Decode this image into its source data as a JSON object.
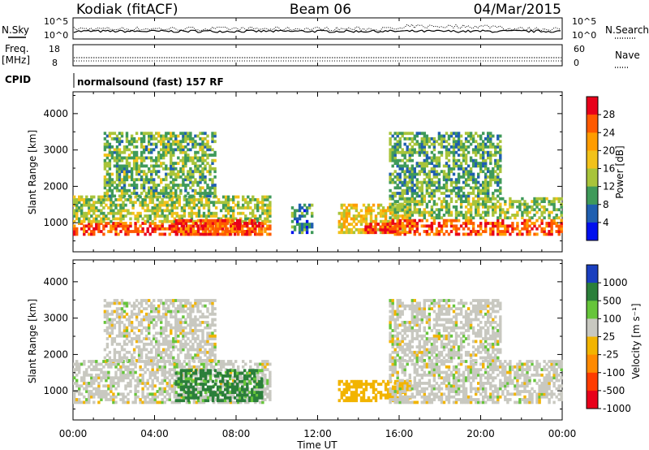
{
  "header": {
    "station": "Kodiak (fitACF)",
    "beam": "Beam 06",
    "date": "04/Mar/2015"
  },
  "status_panels": {
    "nsky_label": "N.Sky",
    "nsky_ticks": [
      "10^5",
      "10^0"
    ],
    "nsearch_label": "N.Search",
    "nsearch_ticks": [
      "10^5",
      "10^0"
    ],
    "freq_label": "Freq.",
    "freq_unit": "[MHz]",
    "freq_ticks": [
      "18",
      "8"
    ],
    "nave_label": "Nave",
    "nave_ticks": [
      "60",
      "0"
    ],
    "cpid_label": "CPID",
    "cpid_text": "normalsound (fast) 157 RF"
  },
  "chart_data": [
    {
      "type": "heatmap",
      "panel": "power",
      "ylabel": "Slant Range [km]",
      "xlabel": "Time UT",
      "x_ticks": [
        "00:00",
        "04:00",
        "08:00",
        "12:00",
        "16:00",
        "20:00",
        "00:00"
      ],
      "xlim": [
        0,
        24
      ],
      "y_ticks": [
        1000,
        2000,
        3000,
        4000
      ],
      "ylim": [
        200,
        4600
      ],
      "colorbar": {
        "label": "Power [dB]",
        "ticks": [
          "28",
          "24",
          "20",
          "16",
          "12",
          "8",
          "4"
        ],
        "colors": [
          "#e8001a",
          "#ff5a00",
          "#ff9c00",
          "#f2c21a",
          "#a8c43a",
          "#3f9a5a",
          "#1f5fb0",
          "#0010ee"
        ]
      },
      "regions": [
        {
          "t0": 0.0,
          "t1": 9.6,
          "r0": 650,
          "r1": 1000,
          "level": 26
        },
        {
          "t0": 0.0,
          "t1": 9.6,
          "r0": 1000,
          "r1": 1700,
          "level": 14
        },
        {
          "t0": 1.5,
          "t1": 7.0,
          "r0": 1700,
          "r1": 3500,
          "level": 12
        },
        {
          "t0": 5.0,
          "t1": 9.2,
          "r0": 650,
          "r1": 1100,
          "level": 27
        },
        {
          "t0": 10.7,
          "t1": 11.7,
          "r0": 700,
          "r1": 1500,
          "level": 8
        },
        {
          "t0": 13.0,
          "t1": 16.5,
          "r0": 700,
          "r1": 1500,
          "level": 18
        },
        {
          "t0": 14.3,
          "t1": 15.8,
          "r0": 700,
          "r1": 950,
          "level": 27
        },
        {
          "t0": 15.5,
          "t1": 24.0,
          "r0": 650,
          "r1": 1100,
          "level": 26
        },
        {
          "t0": 15.5,
          "t1": 24.0,
          "r0": 1100,
          "r1": 1700,
          "level": 13
        },
        {
          "t0": 15.5,
          "t1": 21.0,
          "r0": 1700,
          "r1": 3500,
          "level": 11
        }
      ]
    },
    {
      "type": "heatmap",
      "panel": "velocity",
      "ylabel": "Slant Range [km]",
      "xlabel": "Time UT",
      "x_ticks": [
        "00:00",
        "04:00",
        "08:00",
        "12:00",
        "16:00",
        "20:00",
        "00:00"
      ],
      "xlim": [
        0,
        24
      ],
      "y_ticks": [
        1000,
        2000,
        3000,
        4000
      ],
      "ylim": [
        200,
        4600
      ],
      "colorbar": {
        "label": "Velocity [m s⁻¹]",
        "ticks": [
          "1000",
          "500",
          "100",
          "25",
          "-25",
          "-100",
          "-500",
          "-1000"
        ],
        "colors": [
          "#1a3fbf",
          "#2b7f3a",
          "#66c53a",
          "#c8c8c0",
          "#f2b400",
          "#ff8a00",
          "#ff3c00",
          "#e8001a"
        ]
      },
      "regions": [
        {
          "t0": 0.0,
          "t1": 9.6,
          "r0": 650,
          "r1": 1800,
          "level": 0
        },
        {
          "t0": 1.5,
          "t1": 7.0,
          "r0": 1800,
          "r1": 3500,
          "level": 0
        },
        {
          "t0": 5.0,
          "t1": 9.2,
          "r0": 700,
          "r1": 1600,
          "level": 120
        },
        {
          "t0": 13.0,
          "t1": 16.5,
          "r0": 700,
          "r1": 1300,
          "level": -60
        },
        {
          "t0": 15.5,
          "t1": 24.0,
          "r0": 650,
          "r1": 1800,
          "level": 0
        },
        {
          "t0": 15.5,
          "t1": 21.0,
          "r0": 1800,
          "r1": 3500,
          "level": 0
        }
      ]
    }
  ]
}
